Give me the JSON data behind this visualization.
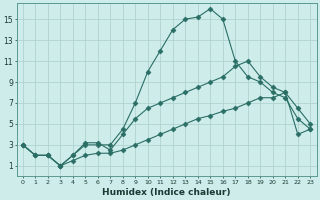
{
  "background_color": "#ceecea",
  "grid_color": "#afd4d0",
  "line_color": "#2a6e65",
  "xlabel": "Humidex (Indice chaleur)",
  "xlim": [
    -0.5,
    23.5
  ],
  "ylim": [
    0,
    16.5
  ],
  "xticks": [
    0,
    1,
    2,
    3,
    4,
    5,
    6,
    7,
    8,
    9,
    10,
    11,
    12,
    13,
    14,
    15,
    16,
    17,
    18,
    19,
    20,
    21,
    22,
    23
  ],
  "yticks": [
    1,
    3,
    5,
    7,
    9,
    11,
    13,
    15
  ],
  "line1_x": [
    0,
    1,
    2,
    3,
    4,
    5,
    6,
    7,
    8,
    9,
    10,
    11,
    12,
    13,
    14,
    15,
    16,
    17,
    18,
    19,
    20,
    21,
    22,
    23
  ],
  "line1_y": [
    3.0,
    2.0,
    2.0,
    1.0,
    2.0,
    3.0,
    3.0,
    3.0,
    4.5,
    7.0,
    10.0,
    12.0,
    14.0,
    15.0,
    15.2,
    16.0,
    15.0,
    11.0,
    9.5,
    9.0,
    8.0,
    7.5,
    5.5,
    4.5
  ],
  "line2_x": [
    0,
    1,
    2,
    3,
    4,
    5,
    6,
    7,
    8,
    9,
    10,
    11,
    12,
    13,
    14,
    15,
    16,
    17,
    18,
    19,
    20,
    21,
    22,
    23
  ],
  "line2_y": [
    3.0,
    2.0,
    2.0,
    1.0,
    2.0,
    3.2,
    3.2,
    2.5,
    4.0,
    5.5,
    6.5,
    7.0,
    7.5,
    8.0,
    8.5,
    9.0,
    9.5,
    10.5,
    11.0,
    9.5,
    8.5,
    8.0,
    6.5,
    5.0
  ],
  "line3_x": [
    0,
    1,
    2,
    3,
    4,
    5,
    6,
    7,
    8,
    9,
    10,
    11,
    12,
    13,
    14,
    15,
    16,
    17,
    18,
    19,
    20,
    21,
    22,
    23
  ],
  "line3_y": [
    3.0,
    2.0,
    2.0,
    1.0,
    1.5,
    2.0,
    2.2,
    2.2,
    2.5,
    3.0,
    3.5,
    4.0,
    4.5,
    5.0,
    5.5,
    5.8,
    6.2,
    6.5,
    7.0,
    7.5,
    7.5,
    8.0,
    4.0,
    4.5
  ]
}
